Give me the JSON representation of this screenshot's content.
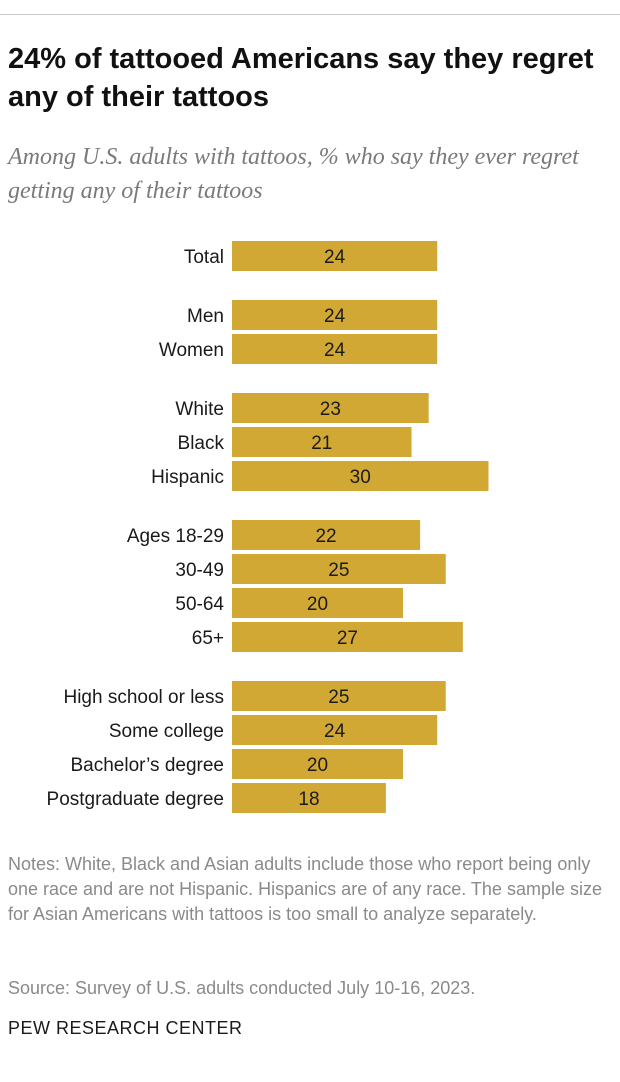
{
  "title": "24% of tattooed Americans say they regret any of their tattoos",
  "subtitle": "Among U.S. adults with tattoos, % who say they ever regret getting any of their tattoos",
  "notes": "Notes: White, Black and Asian adults include those who report being only one race and are not Hispanic. Hispanics are of any race. The sample size for Asian Americans with tattoos is too small to analyze separately.",
  "source": "Source: Survey of U.S. adults conducted July 10-16, 2023.",
  "logo": "PEW RESEARCH CENTER",
  "colors": {
    "bar": "#d1a834",
    "title": "#111111",
    "subtitle": "#7a7a7a",
    "notes": "#8a8a8a"
  },
  "chart_data": {
    "type": "bar",
    "orientation": "horizontal",
    "groups": [
      {
        "categories": [
          "Total"
        ],
        "values": [
          24
        ]
      },
      {
        "categories": [
          "Men",
          "Women"
        ],
        "values": [
          24,
          24
        ]
      },
      {
        "categories": [
          "White",
          "Black",
          "Hispanic"
        ],
        "values": [
          23,
          21,
          30
        ]
      },
      {
        "categories": [
          "Ages 18-29",
          "30-49",
          "50-64",
          "65+"
        ],
        "values": [
          22,
          25,
          20,
          27
        ]
      },
      {
        "categories": [
          "High school or less",
          "Some college",
          "Bachelor’s degree",
          "Postgraduate degree"
        ],
        "values": [
          25,
          24,
          20,
          18
        ]
      }
    ],
    "xlim": [
      0,
      30
    ],
    "data_labels": true,
    "grid": false,
    "axis_visible": false
  }
}
